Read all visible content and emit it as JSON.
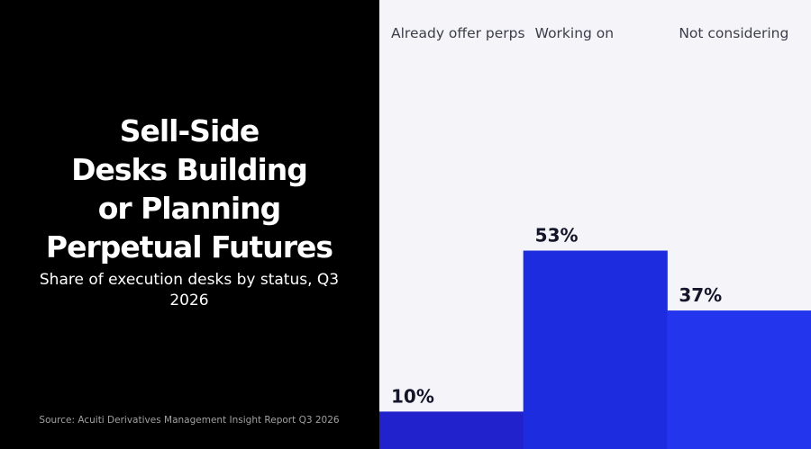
{
  "chart_data": {
    "type": "bar",
    "title": "Sell-Side Desks Building or Planning Perpetual Futures",
    "title_lines": [
      "Sell-Side",
      "Desks Building",
      "or Planning",
      "Perpetual Futures"
    ],
    "subtitle": "Share of execution desks by status, Q3 2026",
    "source": "Source: Acuiti Derivatives Management Insight Report Q3 2026",
    "categories": [
      "Already offer perps",
      "Working on",
      "Not considering"
    ],
    "values": [
      10,
      53,
      37
    ],
    "value_labels": [
      "10%",
      "53%",
      "37%"
    ],
    "unit": "%",
    "ylim": [
      0,
      100
    ],
    "grid": false,
    "legend": "none",
    "bar_colors": [
      "#2222cc",
      "#1c2cde",
      "#2435ee"
    ],
    "background": "#f4f4f9",
    "title_panel_color": "#000000"
  }
}
